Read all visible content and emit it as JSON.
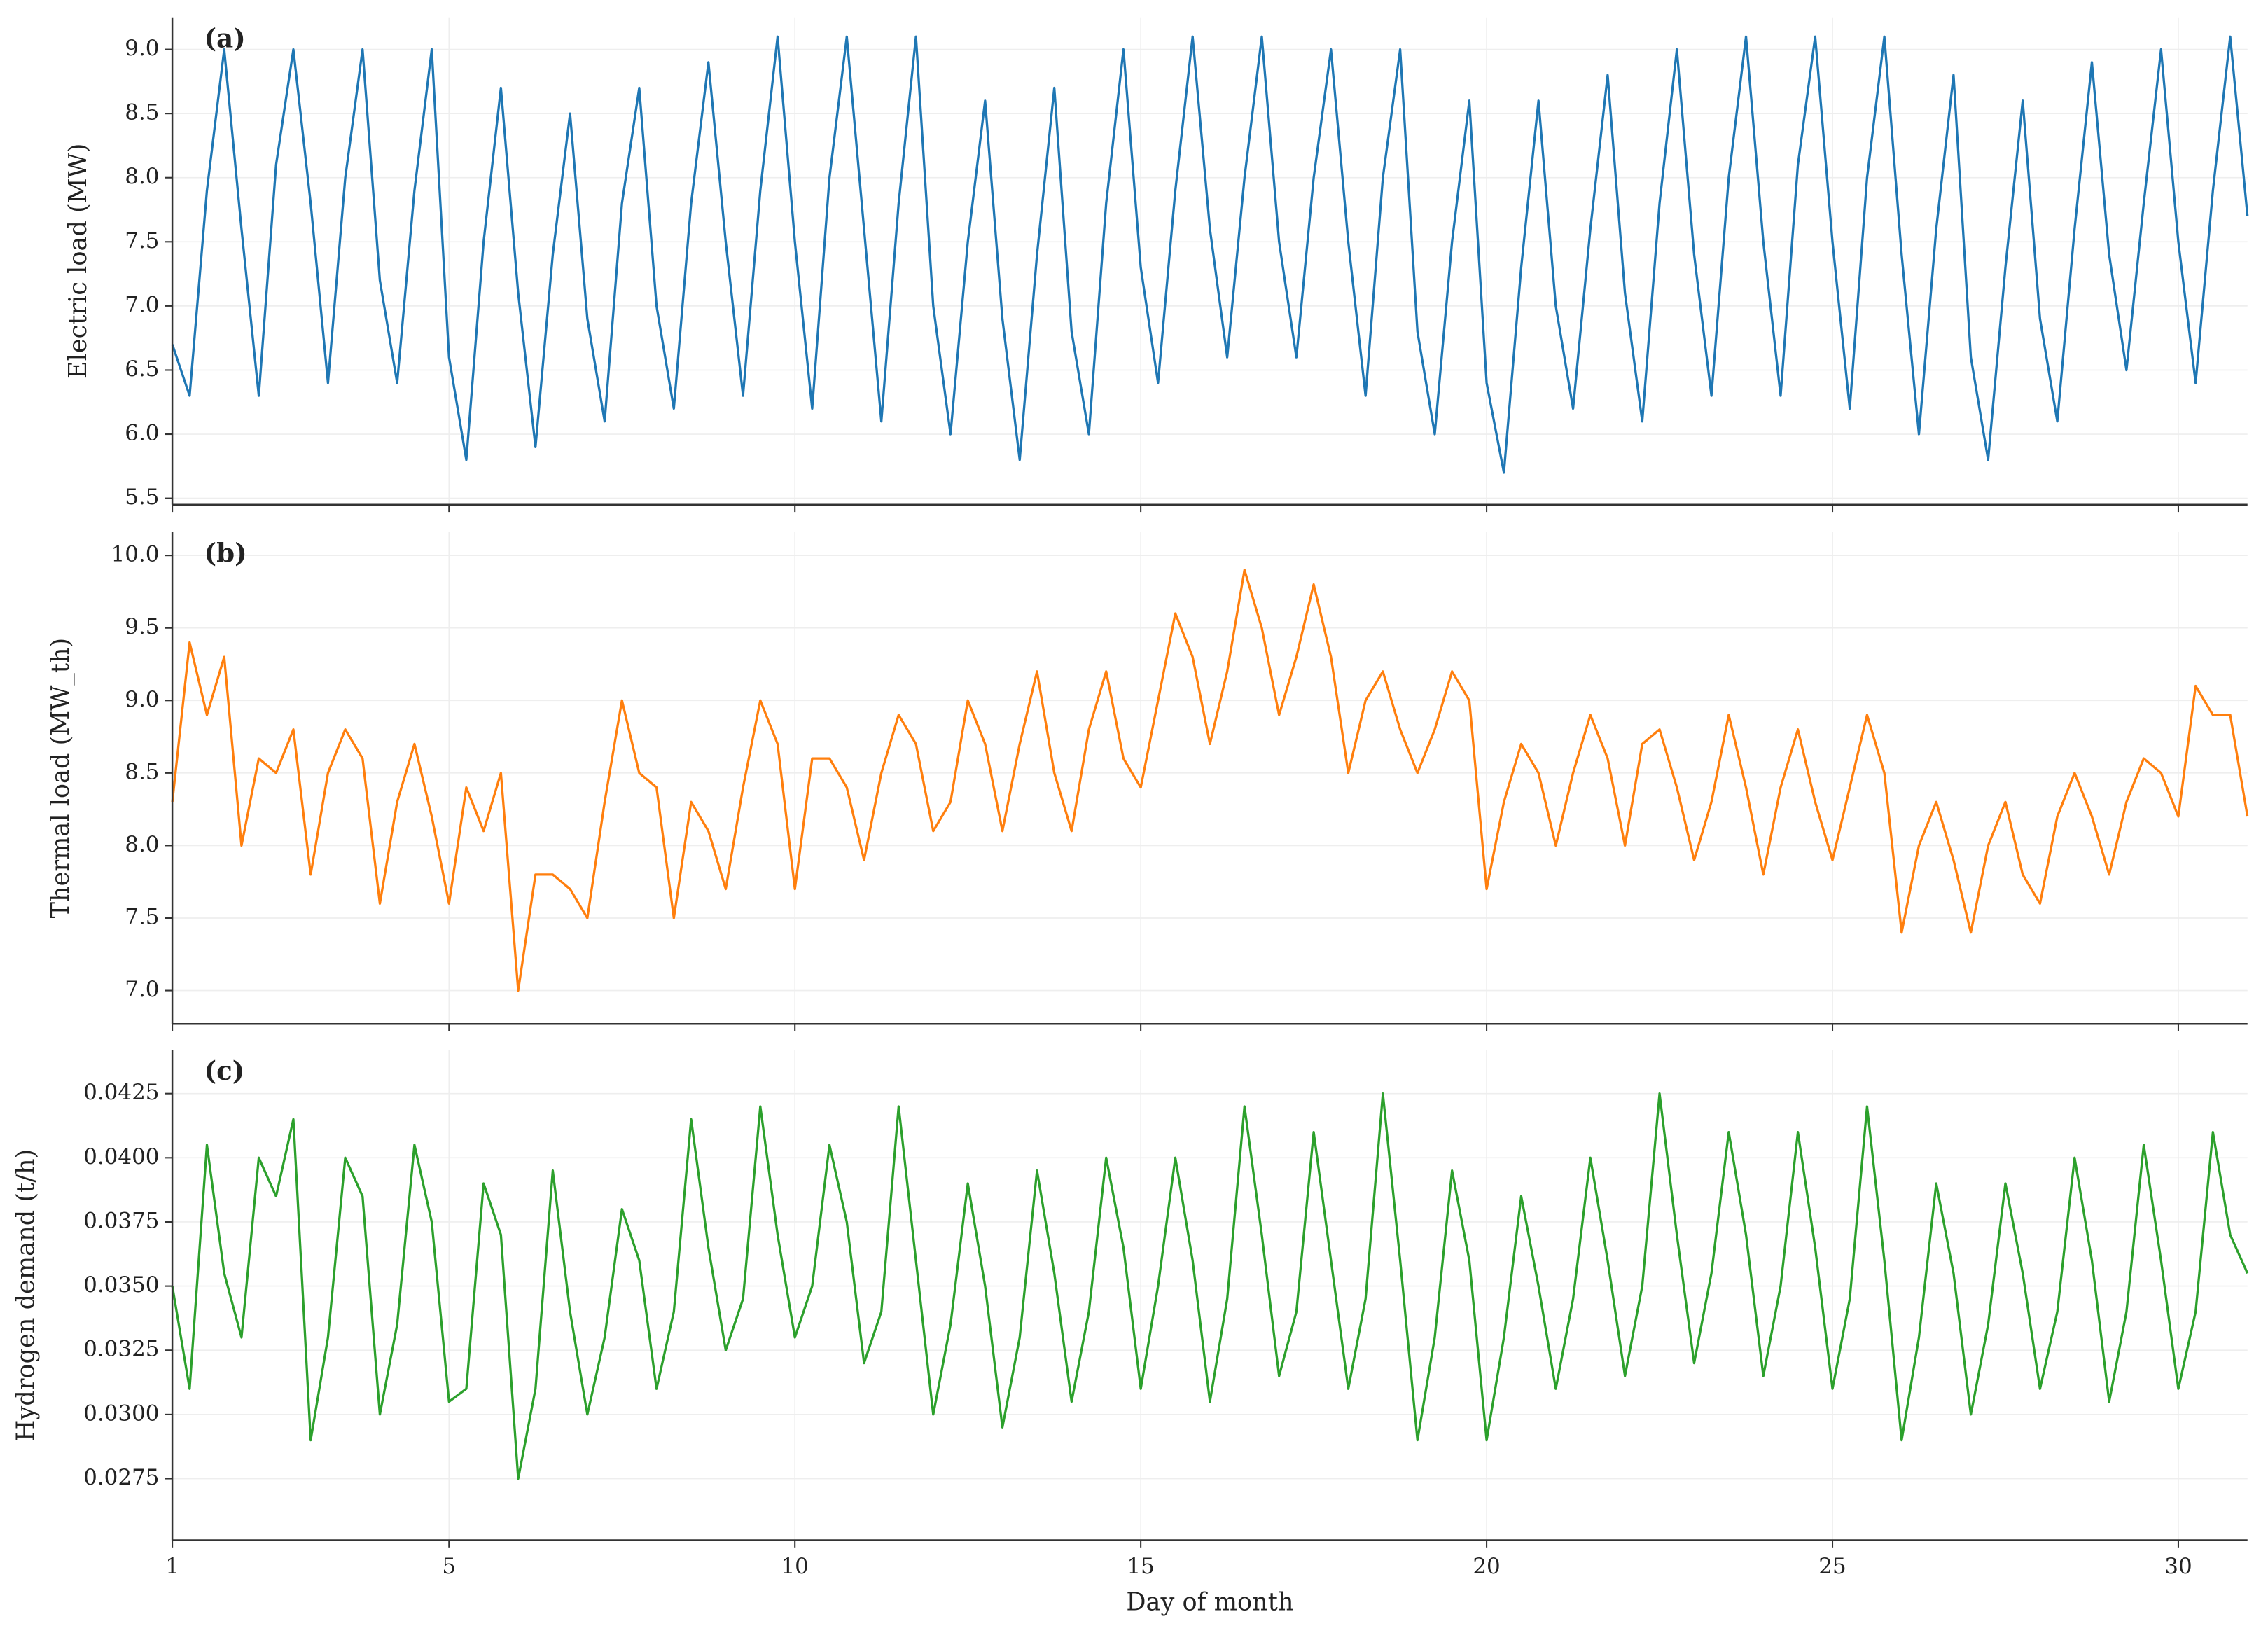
{
  "chart_data": [
    {
      "type": "line",
      "label": "(a)",
      "ylabel": "Electric load (MW)",
      "color": "#1f77b4",
      "xlim": [
        1,
        31
      ],
      "xticks": [
        1,
        5,
        10,
        15,
        20,
        25,
        30
      ],
      "ylim": [
        5.45,
        9.25
      ],
      "yticks": [
        5.5,
        {
          "value": 6.0,
          "label": "6.0"
        },
        6.5,
        {
          "value": 7.0,
          "label": "7.0"
        },
        7.5,
        {
          "value": 8.0,
          "label": "8.0"
        },
        8.5,
        {
          "value": 9.0,
          "label": "9.0"
        }
      ],
      "grid": true,
      "x": [
        1,
        1.25,
        1.5,
        1.75,
        2,
        2.25,
        2.5,
        2.75,
        3,
        3.25,
        3.5,
        3.75,
        4,
        4.25,
        4.5,
        4.75,
        5,
        5.25,
        5.5,
        5.75,
        6,
        6.25,
        6.5,
        6.75,
        7,
        7.25,
        7.5,
        7.75,
        8,
        8.25,
        8.5,
        8.75,
        9,
        9.25,
        9.5,
        9.75,
        10,
        10.25,
        10.5,
        10.75,
        11,
        11.25,
        11.5,
        11.75,
        12,
        12.25,
        12.5,
        12.75,
        13,
        13.25,
        13.5,
        13.75,
        14,
        14.25,
        14.5,
        14.75,
        15,
        15.25,
        15.5,
        15.75,
        16,
        16.25,
        16.5,
        16.75,
        17,
        17.25,
        17.5,
        17.75,
        18,
        18.25,
        18.5,
        18.75,
        19,
        19.25,
        19.5,
        19.75,
        20,
        20.25,
        20.5,
        20.75,
        21,
        21.25,
        21.5,
        21.75,
        22,
        22.25,
        22.5,
        22.75,
        23,
        23.25,
        23.5,
        23.75,
        24,
        24.25,
        24.5,
        24.75,
        25,
        25.25,
        25.5,
        25.75,
        26,
        26.25,
        26.5,
        26.75,
        27,
        27.25,
        27.5,
        27.75,
        28,
        28.25,
        28.5,
        28.75,
        29,
        29.25,
        29.5,
        29.75,
        30,
        30.25,
        30.5,
        30.75,
        31
      ],
      "values": [
        6.7,
        6.3,
        7.9,
        9.0,
        7.6,
        6.3,
        8.1,
        9.0,
        7.8,
        6.4,
        8.0,
        9.0,
        7.2,
        6.4,
        7.9,
        9.0,
        6.6,
        5.8,
        7.5,
        8.7,
        7.1,
        5.9,
        7.4,
        8.5,
        6.9,
        6.1,
        7.8,
        8.7,
        7.0,
        6.2,
        7.8,
        8.9,
        7.5,
        6.3,
        7.9,
        9.1,
        7.5,
        6.2,
        8.0,
        9.1,
        7.6,
        6.1,
        7.8,
        9.1,
        7.0,
        6.0,
        7.5,
        8.6,
        6.9,
        5.8,
        7.4,
        8.7,
        6.8,
        6.0,
        7.8,
        9.0,
        7.3,
        6.4,
        7.9,
        9.1,
        7.6,
        6.6,
        8.0,
        9.1,
        7.5,
        6.6,
        8.0,
        9.0,
        7.5,
        6.3,
        8.0,
        9.0,
        6.8,
        6.0,
        7.5,
        8.6,
        6.4,
        5.7,
        7.3,
        8.6,
        7.0,
        6.2,
        7.6,
        8.8,
        7.1,
        6.1,
        7.8,
        9.0,
        7.4,
        6.3,
        8.0,
        9.1,
        7.5,
        6.3,
        8.1,
        9.1,
        7.5,
        6.2,
        8.0,
        9.1,
        7.4,
        6.0,
        7.6,
        8.8,
        6.6,
        5.8,
        7.3,
        8.6,
        6.9,
        6.1,
        7.6,
        8.9,
        7.4,
        6.5,
        7.8,
        9.0,
        7.5,
        6.4,
        7.9,
        9.1,
        7.7
      ]
    },
    {
      "type": "line",
      "label": "(b)",
      "ylabel": "Thermal load (MW_th)",
      "color": "#ff7f0e",
      "xlim": [
        1,
        31
      ],
      "xticks": [
        1,
        5,
        10,
        15,
        20,
        25,
        30
      ],
      "ylim": [
        6.77,
        10.16
      ],
      "yticks": [
        {
          "value": 7.0,
          "label": "7.0"
        },
        7.5,
        {
          "value": 8.0,
          "label": "8.0"
        },
        8.5,
        {
          "value": 9.0,
          "label": "9.0"
        },
        9.5,
        {
          "value": 10.0,
          "label": "10.0"
        }
      ],
      "grid": true,
      "x": [
        1,
        1.25,
        1.5,
        1.75,
        2,
        2.25,
        2.5,
        2.75,
        3,
        3.25,
        3.5,
        3.75,
        4,
        4.25,
        4.5,
        4.75,
        5,
        5.25,
        5.5,
        5.75,
        6,
        6.25,
        6.5,
        6.75,
        7,
        7.25,
        7.5,
        7.75,
        8,
        8.25,
        8.5,
        8.75,
        9,
        9.25,
        9.5,
        9.75,
        10,
        10.25,
        10.5,
        10.75,
        11,
        11.25,
        11.5,
        11.75,
        12,
        12.25,
        12.5,
        12.75,
        13,
        13.25,
        13.5,
        13.75,
        14,
        14.25,
        14.5,
        14.75,
        15,
        15.25,
        15.5,
        15.75,
        16,
        16.25,
        16.5,
        16.75,
        17,
        17.25,
        17.5,
        17.75,
        18,
        18.25,
        18.5,
        18.75,
        19,
        19.25,
        19.5,
        19.75,
        20,
        20.25,
        20.5,
        20.75,
        21,
        21.25,
        21.5,
        21.75,
        22,
        22.25,
        22.5,
        22.75,
        23,
        23.25,
        23.5,
        23.75,
        24,
        24.25,
        24.5,
        24.75,
        25,
        25.25,
        25.5,
        25.75,
        26,
        26.25,
        26.5,
        26.75,
        27,
        27.25,
        27.5,
        27.75,
        28,
        28.25,
        28.5,
        28.75,
        29,
        29.25,
        29.5,
        29.75,
        30,
        30.25,
        30.5,
        30.75,
        31
      ],
      "values": [
        8.3,
        9.4,
        8.9,
        9.3,
        8.0,
        8.6,
        8.5,
        8.8,
        7.8,
        8.5,
        8.8,
        8.6,
        7.6,
        8.3,
        8.7,
        8.2,
        7.6,
        8.4,
        8.1,
        8.5,
        7.0,
        7.8,
        7.8,
        7.7,
        7.5,
        8.3,
        9.0,
        8.5,
        8.4,
        7.5,
        8.3,
        8.1,
        7.7,
        8.4,
        9.0,
        8.7,
        7.7,
        8.6,
        8.6,
        8.4,
        7.9,
        8.5,
        8.9,
        8.7,
        8.1,
        8.3,
        9.0,
        8.7,
        8.1,
        8.7,
        9.2,
        8.5,
        8.1,
        8.8,
        9.2,
        8.6,
        8.4,
        9.0,
        9.6,
        9.3,
        8.7,
        9.2,
        9.9,
        9.5,
        8.9,
        9.3,
        9.8,
        9.3,
        8.5,
        9.0,
        9.2,
        8.8,
        8.5,
        8.8,
        9.2,
        9.0,
        7.7,
        8.3,
        8.7,
        8.5,
        8.0,
        8.5,
        8.9,
        8.6,
        8.0,
        8.7,
        8.8,
        8.4,
        7.9,
        8.3,
        8.9,
        8.4,
        7.8,
        8.4,
        8.8,
        8.3,
        7.9,
        8.4,
        8.9,
        8.5,
        7.4,
        8.0,
        8.3,
        7.9,
        7.4,
        8.0,
        8.3,
        7.8,
        7.6,
        8.2,
        8.5,
        8.2,
        7.8,
        8.3,
        8.6,
        8.5,
        8.2,
        9.1,
        8.9,
        8.9,
        8.2
      ]
    },
    {
      "type": "line",
      "label": "(c)",
      "ylabel": "Hydrogen demand (t/h)",
      "xlabel": "Day of month",
      "color": "#2ca02c",
      "xlim": [
        1,
        31
      ],
      "xticks": [
        1,
        5,
        10,
        15,
        20,
        25,
        30
      ],
      "ylim": [
        0.0251,
        0.0442
      ],
      "yticks": [
        0.0275,
        {
          "value": 0.03,
          "label": "0.0300"
        },
        0.0325,
        {
          "value": 0.035,
          "label": "0.0350"
        },
        0.0375,
        {
          "value": 0.04,
          "label": "0.0400"
        },
        0.0425
      ],
      "grid": true,
      "x": [
        1,
        1.25,
        1.5,
        1.75,
        2,
        2.25,
        2.5,
        2.75,
        3,
        3.25,
        3.5,
        3.75,
        4,
        4.25,
        4.5,
        4.75,
        5,
        5.25,
        5.5,
        5.75,
        6,
        6.25,
        6.5,
        6.75,
        7,
        7.25,
        7.5,
        7.75,
        8,
        8.25,
        8.5,
        8.75,
        9,
        9.25,
        9.5,
        9.75,
        10,
        10.25,
        10.5,
        10.75,
        11,
        11.25,
        11.5,
        11.75,
        12,
        12.25,
        12.5,
        12.75,
        13,
        13.25,
        13.5,
        13.75,
        14,
        14.25,
        14.5,
        14.75,
        15,
        15.25,
        15.5,
        15.75,
        16,
        16.25,
        16.5,
        16.75,
        17,
        17.25,
        17.5,
        17.75,
        18,
        18.25,
        18.5,
        18.75,
        19,
        19.25,
        19.5,
        19.75,
        20,
        20.25,
        20.5,
        20.75,
        21,
        21.25,
        21.5,
        21.75,
        22,
        22.25,
        22.5,
        22.75,
        23,
        23.25,
        23.5,
        23.75,
        24,
        24.25,
        24.5,
        24.75,
        25,
        25.25,
        25.5,
        25.75,
        26,
        26.25,
        26.5,
        26.75,
        27,
        27.25,
        27.5,
        27.75,
        28,
        28.25,
        28.5,
        28.75,
        29,
        29.25,
        29.5,
        29.75,
        30,
        30.25,
        30.5,
        30.75,
        31
      ],
      "values": [
        0.035,
        0.031,
        0.0405,
        0.0355,
        0.033,
        0.04,
        0.0385,
        0.0415,
        0.029,
        0.033,
        0.04,
        0.0385,
        0.03,
        0.0335,
        0.0405,
        0.0375,
        0.0305,
        0.031,
        0.039,
        0.037,
        0.0275,
        0.031,
        0.0395,
        0.034,
        0.03,
        0.033,
        0.038,
        0.036,
        0.031,
        0.034,
        0.0415,
        0.0365,
        0.0325,
        0.0345,
        0.042,
        0.037,
        0.033,
        0.035,
        0.0405,
        0.0375,
        0.032,
        0.034,
        0.042,
        0.036,
        0.03,
        0.0335,
        0.039,
        0.035,
        0.0295,
        0.033,
        0.0395,
        0.0355,
        0.0305,
        0.034,
        0.04,
        0.0365,
        0.031,
        0.035,
        0.04,
        0.036,
        0.0305,
        0.0345,
        0.042,
        0.037,
        0.0315,
        0.034,
        0.041,
        0.036,
        0.031,
        0.0345,
        0.0425,
        0.036,
        0.029,
        0.033,
        0.0395,
        0.036,
        0.029,
        0.033,
        0.0385,
        0.035,
        0.031,
        0.0345,
        0.04,
        0.036,
        0.0315,
        0.035,
        0.0425,
        0.037,
        0.032,
        0.0355,
        0.041,
        0.037,
        0.0315,
        0.035,
        0.041,
        0.0365,
        0.031,
        0.0345,
        0.042,
        0.036,
        0.029,
        0.033,
        0.039,
        0.0355,
        0.03,
        0.0335,
        0.039,
        0.0355,
        0.031,
        0.034,
        0.04,
        0.036,
        0.0305,
        0.034,
        0.0405,
        0.036,
        0.031,
        0.034,
        0.041,
        0.037,
        0.0355
      ]
    }
  ]
}
